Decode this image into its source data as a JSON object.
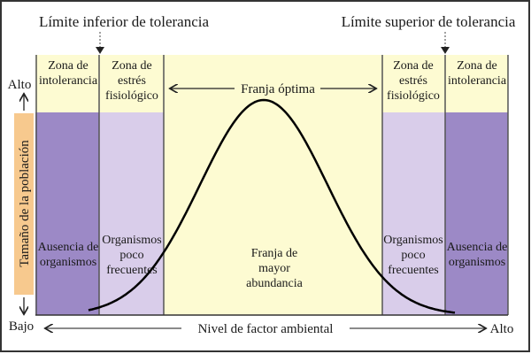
{
  "title_lower_limit": "Límite inferior de tolerancia",
  "title_upper_limit": "Límite superior de tolerancia",
  "y_axis": {
    "label": "Tamaño de la población",
    "high": "Alto",
    "low": "Bajo"
  },
  "x_axis": {
    "label": "Nivel de factor ambiental",
    "high": "Alto"
  },
  "optimal_range": "Franja óptima",
  "zones": {
    "intolerance_top": [
      "Zona de",
      "intolerancia"
    ],
    "stress_top": [
      "Zona de",
      "estrés",
      "fisiológico"
    ],
    "absence": [
      "Ausencia de",
      "organismos"
    ],
    "rare": [
      "Organismos",
      "poco",
      "frecuentes"
    ],
    "abundance": [
      "Franja de",
      "mayor",
      "abundancia"
    ]
  },
  "colors": {
    "dark_purple": "#9c89c6",
    "light_purple": "#d9cdea",
    "pale_yellow": "#fdfbd2",
    "axis_label_bg": "#f7c98e"
  }
}
